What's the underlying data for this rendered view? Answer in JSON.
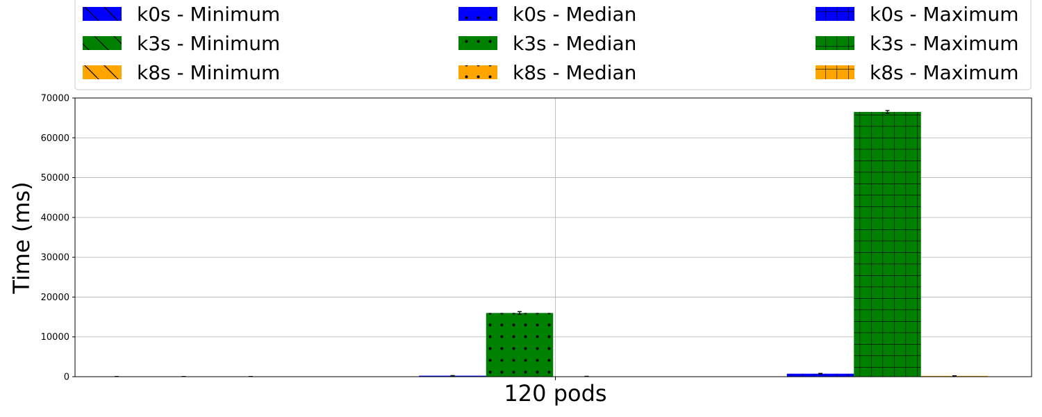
{
  "chart_data": {
    "type": "bar",
    "categories": [
      "120 pods"
    ],
    "xlabel": "",
    "ylabel": "Time (ms)",
    "ylim": [
      0,
      70000
    ],
    "yticks": [
      0,
      10000,
      20000,
      30000,
      40000,
      50000,
      60000,
      70000
    ],
    "grid": true,
    "legend_position": "top",
    "colors": {
      "k0s": "#0000ff",
      "k3s": "#008000",
      "k8s": "#ffa500"
    },
    "patterns": {
      "Minimum": "diagonal-hatch",
      "Median": "dots",
      "Maximum": "grid-hatch"
    },
    "series": [
      {
        "name": "k0s - Minimum",
        "distribution": "k0s",
        "stat": "Minimum",
        "values": [
          40
        ],
        "error": [
          10
        ]
      },
      {
        "name": "k3s - Minimum",
        "distribution": "k3s",
        "stat": "Minimum",
        "values": [
          45
        ],
        "error": [
          10
        ]
      },
      {
        "name": "k8s - Minimum",
        "distribution": "k8s",
        "stat": "Minimum",
        "values": [
          50
        ],
        "error": [
          10
        ]
      },
      {
        "name": "k0s - Median",
        "distribution": "k0s",
        "stat": "Median",
        "values": [
          250
        ],
        "error": [
          30
        ]
      },
      {
        "name": "k3s - Median",
        "distribution": "k3s",
        "stat": "Median",
        "values": [
          16000
        ],
        "error": [
          350
        ]
      },
      {
        "name": "k8s - Median",
        "distribution": "k8s",
        "stat": "Median",
        "values": [
          80
        ],
        "error": [
          20
        ]
      },
      {
        "name": "k0s - Maximum",
        "distribution": "k0s",
        "stat": "Maximum",
        "values": [
          750
        ],
        "error": [
          80
        ]
      },
      {
        "name": "k3s - Maximum",
        "distribution": "k3s",
        "stat": "Maximum",
        "values": [
          66500
        ],
        "error": [
          350
        ]
      },
      {
        "name": "k8s - Maximum",
        "distribution": "k8s",
        "stat": "Maximum",
        "values": [
          200
        ],
        "error": [
          30
        ]
      }
    ]
  }
}
